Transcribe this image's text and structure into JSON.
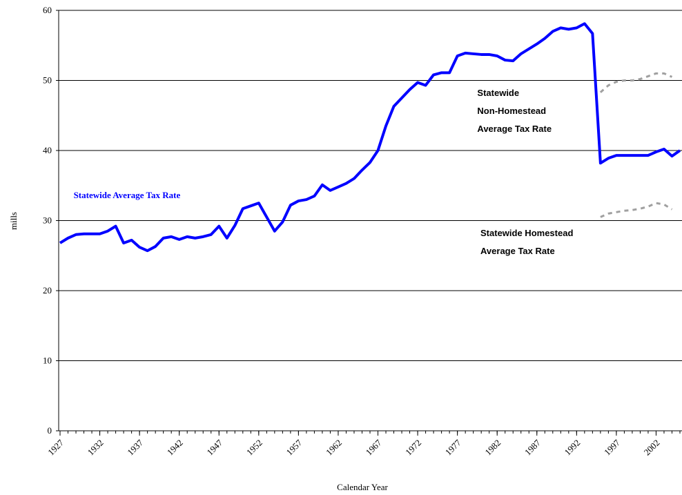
{
  "chart_data": {
    "type": "line",
    "x_label": "Calendar Year",
    "y_label": "mills",
    "x": [
      1927,
      1928,
      1929,
      1930,
      1931,
      1932,
      1933,
      1934,
      1935,
      1936,
      1937,
      1938,
      1939,
      1940,
      1941,
      1942,
      1943,
      1944,
      1945,
      1946,
      1947,
      1948,
      1949,
      1950,
      1951,
      1952,
      1953,
      1954,
      1955,
      1956,
      1957,
      1958,
      1959,
      1960,
      1961,
      1962,
      1963,
      1964,
      1965,
      1966,
      1967,
      1968,
      1969,
      1970,
      1971,
      1972,
      1973,
      1974,
      1975,
      1976,
      1977,
      1978,
      1979,
      1980,
      1981,
      1982,
      1983,
      1984,
      1985,
      1986,
      1987,
      1988,
      1989,
      1990,
      1991,
      1992,
      1993,
      1994,
      1995,
      1996,
      1997,
      1998,
      1999,
      2000,
      2001,
      2002,
      2003,
      2004,
      2005
    ],
    "series": [
      {
        "name": "Statewide Average Tax Rate",
        "color": "#0000ff",
        "dashed": false,
        "values": [
          26.8,
          27.5,
          28.0,
          28.1,
          28.1,
          28.1,
          28.5,
          29.2,
          26.8,
          27.2,
          26.2,
          25.7,
          26.3,
          27.5,
          27.7,
          27.3,
          27.7,
          27.5,
          27.7,
          28.0,
          29.2,
          27.5,
          29.3,
          31.7,
          32.1,
          32.5,
          30.5,
          28.5,
          29.8,
          32.2,
          32.8,
          33.0,
          33.5,
          35.1,
          34.3,
          34.8,
          35.3,
          36.0,
          37.2,
          38.3,
          40.0,
          43.5,
          46.3,
          47.5,
          48.7,
          49.7,
          49.3,
          50.8,
          51.1,
          51.1,
          53.5,
          53.9,
          53.8,
          53.7,
          53.7,
          53.5,
          52.9,
          52.8,
          53.8,
          54.5,
          55.2,
          56.0,
          57.0,
          57.5,
          57.3,
          57.5,
          58.1,
          56.7,
          38.2,
          38.9,
          39.3,
          39.3,
          39.3,
          39.3,
          39.3,
          39.8,
          40.2,
          39.2,
          40.0
        ]
      },
      {
        "name": "Statewide Non-Homestead Average Tax Rate",
        "color": "#a0a0a0",
        "dashed": true,
        "values": [
          null,
          null,
          null,
          null,
          null,
          null,
          null,
          null,
          null,
          null,
          null,
          null,
          null,
          null,
          null,
          null,
          null,
          null,
          null,
          null,
          null,
          null,
          null,
          null,
          null,
          null,
          null,
          null,
          null,
          null,
          null,
          null,
          null,
          null,
          null,
          null,
          null,
          null,
          null,
          null,
          null,
          null,
          null,
          null,
          null,
          null,
          null,
          null,
          null,
          null,
          null,
          null,
          null,
          null,
          null,
          null,
          null,
          null,
          null,
          null,
          null,
          null,
          null,
          null,
          null,
          null,
          null,
          null,
          48.3,
          49.3,
          49.8,
          50.0,
          50.0,
          50.2,
          50.6,
          51.0,
          51.0,
          50.5,
          null
        ]
      },
      {
        "name": "Statewide Homestead Average Tax Rate",
        "color": "#a0a0a0",
        "dashed": true,
        "values": [
          null,
          null,
          null,
          null,
          null,
          null,
          null,
          null,
          null,
          null,
          null,
          null,
          null,
          null,
          null,
          null,
          null,
          null,
          null,
          null,
          null,
          null,
          null,
          null,
          null,
          null,
          null,
          null,
          null,
          null,
          null,
          null,
          null,
          null,
          null,
          null,
          null,
          null,
          null,
          null,
          null,
          null,
          null,
          null,
          null,
          null,
          null,
          null,
          null,
          null,
          null,
          null,
          null,
          null,
          null,
          null,
          null,
          null,
          null,
          null,
          null,
          null,
          null,
          null,
          null,
          null,
          null,
          null,
          30.5,
          31.0,
          31.2,
          31.4,
          31.5,
          31.7,
          32.0,
          32.5,
          32.3,
          31.6,
          null
        ]
      }
    ],
    "annotations": [
      {
        "lines": [
          "Statewide Average Tax Rate"
        ],
        "color": "#0000ff",
        "x": 1928.7,
        "y": 33.2
      },
      {
        "lines": [
          "Statewide",
          "Non-Homestead",
          "Average Tax Rate"
        ],
        "color": "#000000",
        "x": 1979.5,
        "y": 47.8
      },
      {
        "lines": [
          "Statewide Homestead",
          "Average Tax Rate"
        ],
        "color": "#000000",
        "x": 1979.9,
        "y": 27.8
      }
    ],
    "xlim": [
      1927,
      2005
    ],
    "ylim": [
      0,
      60
    ],
    "xticks": [
      1927,
      1932,
      1937,
      1942,
      1947,
      1952,
      1957,
      1962,
      1967,
      1972,
      1977,
      1982,
      1987,
      1992,
      1997,
      2002
    ],
    "yticks": [
      0,
      10,
      20,
      30,
      40,
      50,
      60
    ],
    "grid": true
  }
}
